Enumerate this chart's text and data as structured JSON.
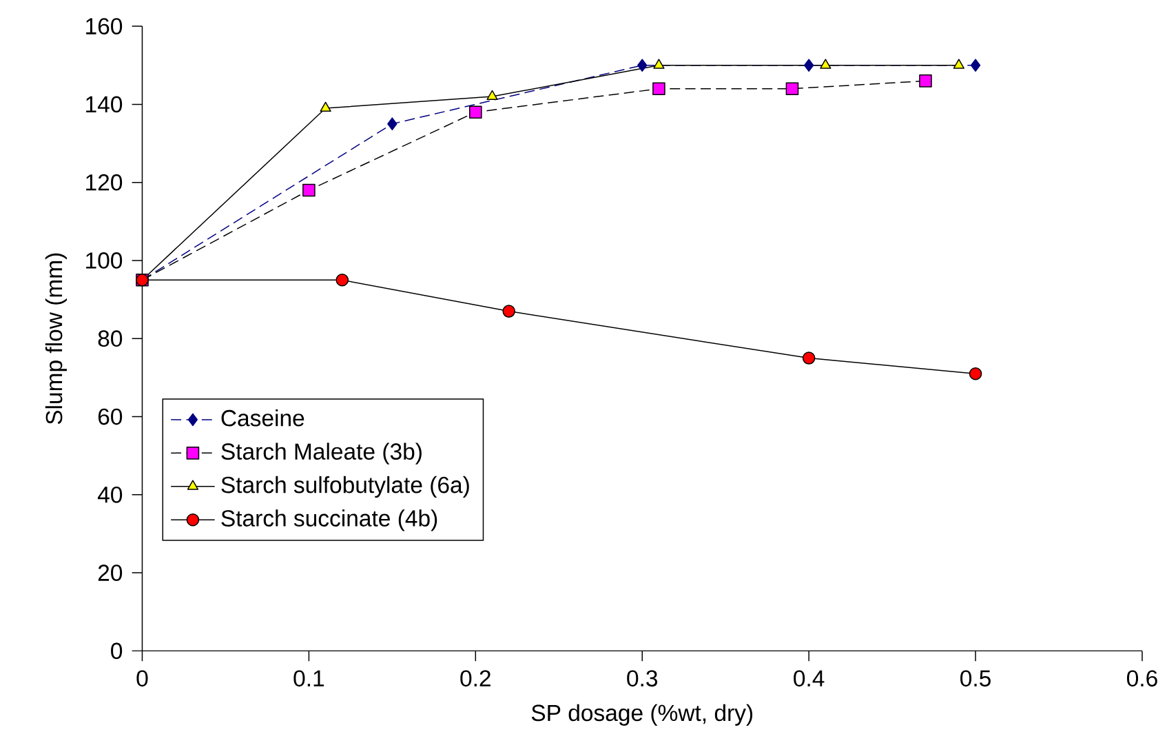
{
  "chart_data": {
    "type": "line",
    "xlabel": "SP dosage (%wt, dry)",
    "ylabel": "Slump flow (mm)",
    "xlim": [
      0,
      0.6
    ],
    "xticks": [
      0,
      0.1,
      0.2,
      0.3,
      0.4,
      0.5,
      0.6
    ],
    "ylim": [
      0,
      160
    ],
    "yticks": [
      0,
      20,
      40,
      60,
      80,
      100,
      120,
      140,
      160
    ],
    "grid": false,
    "legend": "left",
    "series": [
      {
        "name": "Caseine",
        "color": "#000080",
        "marker": "diamond",
        "line_style": "dashed",
        "x": [
          0,
          0.15,
          0.3,
          0.4,
          0.5
        ],
        "values": [
          95,
          135,
          150,
          150,
          150
        ]
      },
      {
        "name": "Starch Maleate (3b)",
        "color": "#ff00ff",
        "marker": "square",
        "line_style": "dashed",
        "x": [
          0,
          0.1,
          0.2,
          0.31,
          0.39,
          0.47
        ],
        "values": [
          95,
          118,
          138,
          144,
          144,
          146
        ]
      },
      {
        "name": "Starch sulfobutylate (6a)",
        "color": "#ffff00",
        "marker": "triangle",
        "line_style": "solid",
        "x": [
          0,
          0.11,
          0.21,
          0.31,
          0.41,
          0.49
        ],
        "values": [
          95,
          139,
          142,
          150,
          150,
          150
        ]
      },
      {
        "name": "Starch succinate (4b)",
        "color": "#ff0000",
        "marker": "circle",
        "line_style": "solid",
        "x": [
          0,
          0.12,
          0.22,
          0.4,
          0.5
        ],
        "values": [
          95,
          95,
          87,
          75,
          71
        ]
      }
    ]
  }
}
